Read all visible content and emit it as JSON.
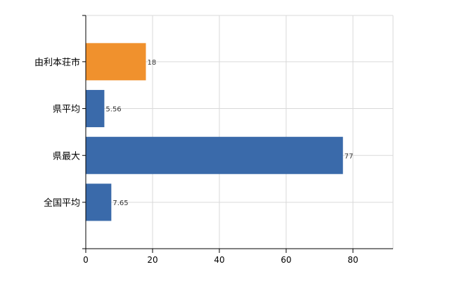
{
  "chart_data": {
    "type": "bar",
    "orientation": "horizontal",
    "categories": [
      "由利本荘市",
      "県平均",
      "県最大",
      "全国平均"
    ],
    "values": [
      18,
      5.56,
      77,
      7.65
    ],
    "value_labels": [
      "18",
      "5.56",
      "77",
      "7.65"
    ],
    "bar_colors": [
      "#f0912d",
      "#3a6aaa",
      "#3a6aaa",
      "#3a6aaa"
    ],
    "xlim": [
      0,
      92
    ],
    "xticks": [
      0,
      20,
      40,
      60,
      80
    ],
    "grid": true,
    "title": "",
    "xlabel": "",
    "ylabel": ""
  }
}
